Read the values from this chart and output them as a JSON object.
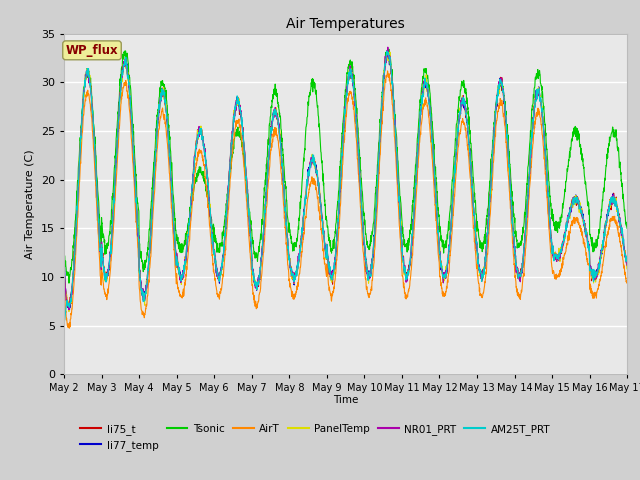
{
  "title": "Air Temperatures",
  "ylabel": "Air Temperature (C)",
  "xlabel": "Time",
  "ylim": [
    0,
    35
  ],
  "yticks": [
    0,
    5,
    10,
    15,
    20,
    25,
    30,
    35
  ],
  "xtick_labels": [
    "May 2",
    "May 3",
    "May 4",
    "May 5",
    "May 6",
    "May 7",
    "May 8",
    "May 9",
    "May 10",
    "May 11",
    "May 12",
    "May 13",
    "May 14",
    "May 15",
    "May 16",
    "May 17"
  ],
  "series": [
    {
      "label": "li75_t",
      "color": "#cc0000"
    },
    {
      "label": "li77_temp",
      "color": "#0000cc"
    },
    {
      "label": "Tsonic",
      "color": "#00cc00"
    },
    {
      "label": "AirT",
      "color": "#ff8800"
    },
    {
      "label": "PanelTemp",
      "color": "#dddd00"
    },
    {
      "label": "NR01_PRT",
      "color": "#aa00aa"
    },
    {
      "label": "AM25T_PRT",
      "color": "#00cccc"
    }
  ],
  "wp_flux_box_color": "#eeee99",
  "wp_flux_text_color": "#880000",
  "plot_bg_color": "#e8e8e8",
  "fig_bg_color": "#d0d0d0",
  "grid_color": "#ffffff"
}
